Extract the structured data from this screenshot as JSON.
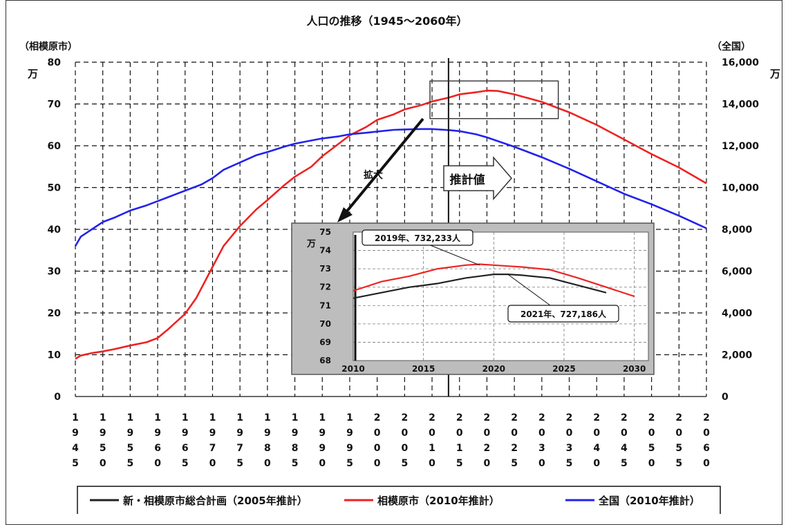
{
  "chart_data": {
    "type": "line",
    "title": "人口の推移（1945〜2060年）",
    "left_axis": {
      "caption": "（相模原市）",
      "unit": "万",
      "ticks": [
        "0",
        "10",
        "20",
        "30",
        "40",
        "50",
        "60",
        "70",
        "80"
      ],
      "ylim": [
        0,
        80
      ]
    },
    "right_axis": {
      "caption": "（全国）",
      "unit": "万",
      "ticks": [
        "0",
        "2,000",
        "4,000",
        "6,000",
        "8,000",
        "10,000",
        "12,000",
        "14,000",
        "16,000"
      ],
      "ylim": [
        0,
        16000
      ]
    },
    "x_ticks": [
      "1945",
      "1950",
      "1955",
      "1960",
      "1965",
      "1970",
      "1975",
      "1980",
      "1985",
      "1990",
      "1995",
      "2000",
      "2005",
      "2010",
      "2015",
      "2020",
      "2025",
      "2030",
      "2035",
      "2040",
      "2045",
      "2050",
      "2055",
      "2060"
    ],
    "xlim": [
      1945,
      2060
    ],
    "grid": true,
    "series": [
      {
        "name": "相模原市（2010年推計）",
        "axis": "left",
        "color": "#ee2222",
        "x": [
          1945,
          1946,
          1948,
          1950,
          1952,
          1955,
          1958,
          1960,
          1962,
          1965,
          1967,
          1970,
          1972,
          1975,
          1978,
          1980,
          1983,
          1985,
          1988,
          1990,
          1993,
          1995,
          1998,
          2000,
          2003,
          2005,
          2008,
          2010,
          2013,
          2015,
          2018,
          2020,
          2022,
          2025,
          2030,
          2035,
          2040,
          2045,
          2050,
          2055,
          2060
        ],
        "y": [
          9.0,
          9.8,
          10.4,
          10.8,
          11.3,
          12.2,
          13.0,
          14.0,
          16.2,
          19.8,
          23.5,
          31.0,
          36.0,
          40.8,
          44.8,
          47.0,
          50.5,
          52.6,
          55.0,
          57.5,
          60.5,
          62.5,
          64.5,
          66.2,
          67.5,
          68.7,
          69.7,
          70.6,
          71.5,
          72.3,
          72.8,
          73.2,
          73.1,
          72.3,
          70.5,
          68.0,
          65.0,
          61.5,
          58.0,
          54.8,
          51.0
        ]
      },
      {
        "name": "全国（2010年推計）",
        "axis": "right",
        "color": "#2222ee",
        "x": [
          1945,
          1946,
          1948,
          1950,
          1952,
          1955,
          1958,
          1960,
          1962,
          1965,
          1968,
          1970,
          1972,
          1975,
          1978,
          1980,
          1983,
          1985,
          1988,
          1990,
          1993,
          1995,
          1998,
          2000,
          2003,
          2005,
          2008,
          2010,
          2013,
          2015,
          2018,
          2020,
          2025,
          2030,
          2035,
          2040,
          2045,
          2050,
          2055,
          2060
        ],
        "y": [
          7200,
          7650,
          8000,
          8350,
          8550,
          8900,
          9150,
          9350,
          9550,
          9850,
          10150,
          10450,
          10850,
          11200,
          11550,
          11700,
          11950,
          12100,
          12250,
          12350,
          12450,
          12550,
          12620,
          12680,
          12760,
          12780,
          12800,
          12800,
          12750,
          12700,
          12550,
          12400,
          11950,
          11450,
          10900,
          10300,
          9700,
          9200,
          8650,
          8050
        ]
      },
      {
        "name": "新・相模原市総合計画（2005年推計）",
        "axis": "left",
        "color": "#222222",
        "x": [
          2010,
          2011,
          2012,
          2013,
          2014,
          2015,
          2016,
          2017,
          2018,
          2019,
          2020,
          2021,
          2022,
          2023,
          2024,
          2025,
          2026,
          2027,
          2028
        ],
        "y": [
          71.3,
          71.5,
          71.7,
          71.8,
          72.0,
          72.1,
          72.2,
          72.4,
          72.5,
          72.6,
          72.7,
          72.7,
          72.6,
          72.5,
          72.4,
          72.3,
          72.1,
          71.9,
          71.7
        ]
      }
    ],
    "legend": {
      "placement": "bottom",
      "items": [
        {
          "label": "新・相模原市総合計画（2005年推計）",
          "color": "#222222"
        },
        {
          "label": "相模原市（2010年推計）",
          "color": "#ee2222"
        },
        {
          "label": "全国（2010年推計）",
          "color": "#2222ee"
        }
      ]
    },
    "annotations": {
      "estimate_label": "推計値",
      "zoom_label": "拡大",
      "divider_year": 2013
    },
    "inset": {
      "unit": "万",
      "x_ticks": [
        "2010",
        "2015",
        "2020",
        "2025",
        "2030"
      ],
      "xlim": [
        2010,
        2031
      ],
      "y_ticks": [
        "68",
        "69",
        "70",
        "71",
        "72",
        "73",
        "74",
        "75"
      ],
      "ylim": [
        68,
        75
      ],
      "callouts": [
        {
          "text": "2019年、732,233人",
          "x": 2019,
          "y": 73.2
        },
        {
          "text": "2021年、727,186人",
          "x": 2021,
          "y": 72.7
        }
      ],
      "red_x": [
        2010,
        2012,
        2014,
        2016,
        2018,
        2019,
        2020,
        2021,
        2022,
        2024,
        2026,
        2028,
        2030
      ],
      "red_y": [
        71.8,
        72.3,
        72.6,
        73.0,
        73.2,
        73.25,
        73.2,
        73.15,
        73.1,
        72.95,
        72.5,
        72.0,
        71.5
      ],
      "black_x": [
        2010,
        2012,
        2014,
        2015,
        2016,
        2018,
        2019,
        2020,
        2021,
        2022,
        2024,
        2026,
        2028
      ],
      "black_y": [
        71.4,
        71.7,
        72.0,
        72.1,
        72.2,
        72.5,
        72.6,
        72.7,
        72.7,
        72.65,
        72.5,
        72.1,
        71.7
      ]
    }
  }
}
